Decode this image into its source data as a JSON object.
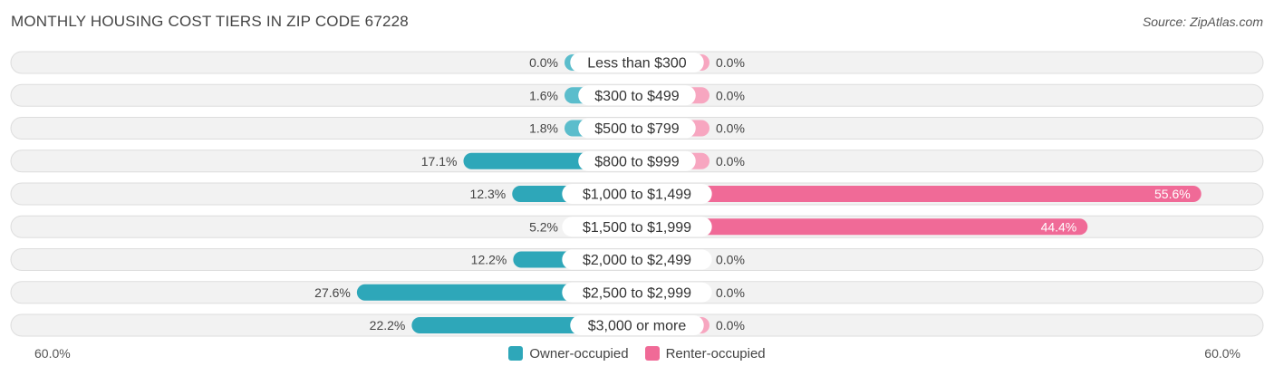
{
  "title": "MONTHLY HOUSING COST TIERS IN ZIP CODE 67228",
  "source": "Source: ZipAtlas.com",
  "colors": {
    "owner": "#5bbdcc",
    "owner_strong": "#2ea7b9",
    "renter": "#f7a6c0",
    "renter_strong": "#f06a97",
    "row_bg": "#f2f2f2",
    "row_border": "#dddddd"
  },
  "legend": {
    "owner_label": "Owner-occupied",
    "renter_label": "Renter-occupied"
  },
  "axis": {
    "left_label": "60.0%",
    "right_label": "60.0%"
  },
  "chart_data": {
    "type": "bar",
    "orientation": "horizontal-diverging",
    "categories": [
      "Less than $300",
      "$300 to $499",
      "$500 to $799",
      "$800 to $999",
      "$1,000 to $1,499",
      "$1,500 to $1,999",
      "$2,000 to $2,499",
      "$2,500 to $2,999",
      "$3,000 or more"
    ],
    "series": [
      {
        "name": "Owner-occupied",
        "values": [
          0.0,
          1.6,
          1.8,
          17.1,
          12.3,
          5.2,
          12.2,
          27.6,
          22.2
        ],
        "labels": [
          "0.0%",
          "1.6%",
          "1.8%",
          "17.1%",
          "12.3%",
          "5.2%",
          "12.2%",
          "27.6%",
          "22.2%"
        ]
      },
      {
        "name": "Renter-occupied",
        "values": [
          0.0,
          0.0,
          0.0,
          0.0,
          55.6,
          44.4,
          0.0,
          0.0,
          0.0
        ],
        "labels": [
          "0.0%",
          "0.0%",
          "0.0%",
          "0.0%",
          "55.6%",
          "44.4%",
          "0.0%",
          "0.0%",
          "0.0%"
        ]
      }
    ],
    "xlim": [
      -60,
      60
    ],
    "legend_position": "bottom-center"
  }
}
